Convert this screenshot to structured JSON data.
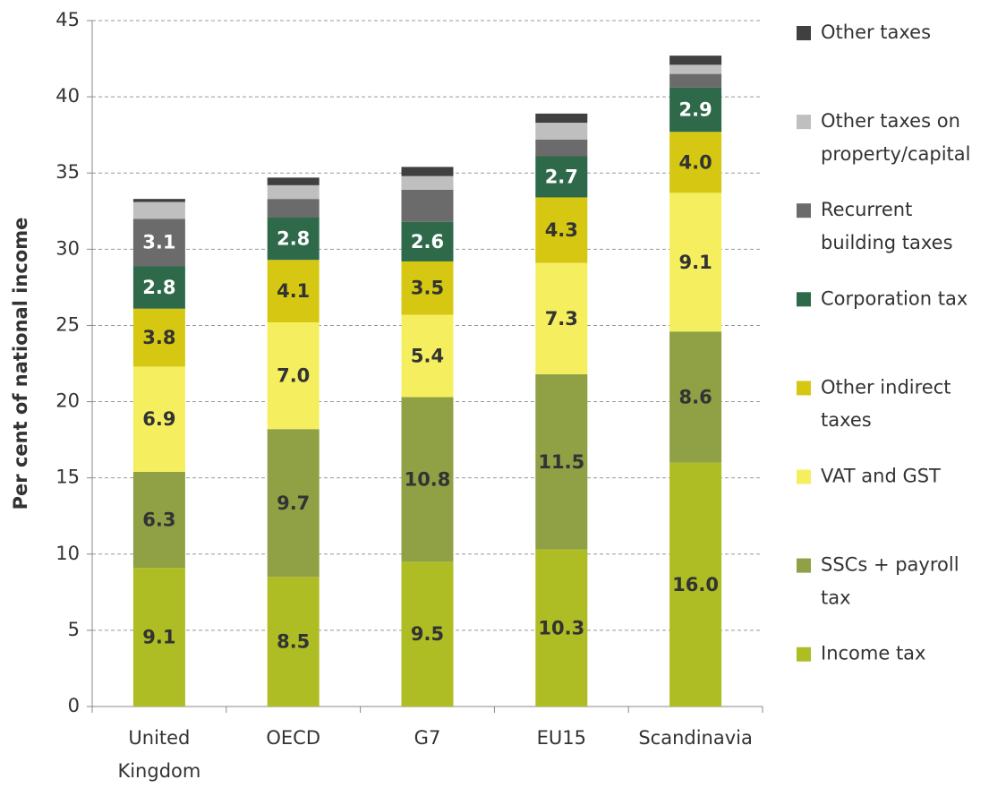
{
  "chart_data": {
    "type": "stacked_bar",
    "y_label": "Per cent of national income",
    "categories": [
      "United Kingdom",
      "OECD",
      "G7",
      "EU15",
      "Scandinavia"
    ],
    "ylim": [
      0,
      45
    ],
    "yticks": [
      0,
      5,
      10,
      15,
      20,
      25,
      30,
      35,
      40,
      45
    ],
    "grid": true,
    "legend": "right",
    "series": [
      {
        "name": "Income tax",
        "color": "#aebd23",
        "values": [
          9.1,
          8.5,
          9.5,
          10.3,
          16.0
        ],
        "value_labels": [
          "9.1",
          "8.5",
          "9.5",
          "10.3",
          "16.0"
        ]
      },
      {
        "name": "SSCs + payroll tax",
        "color": "#8fa045",
        "values": [
          6.3,
          9.7,
          10.8,
          11.5,
          8.6
        ],
        "value_labels": [
          "6.3",
          "9.7",
          "10.8",
          "11.5",
          "8.6"
        ]
      },
      {
        "name": "VAT and GST",
        "color": "#f5ef5f",
        "values": [
          6.9,
          7.0,
          5.4,
          7.3,
          9.1
        ],
        "value_labels": [
          "6.9",
          "7.0",
          "5.4",
          "7.3",
          "9.1"
        ]
      },
      {
        "name": "Other indirect taxes",
        "color": "#d6c812",
        "values": [
          3.8,
          4.1,
          3.5,
          4.3,
          4.0
        ],
        "value_labels": [
          "3.8",
          "4.1",
          "3.5",
          "4.3",
          "4.0"
        ]
      },
      {
        "name": "Corporation tax",
        "color": "#2e6a4a",
        "values": [
          2.8,
          2.8,
          2.6,
          2.7,
          2.9
        ],
        "value_labels": [
          "2.8",
          "2.8",
          "2.6",
          "2.7",
          "2.9"
        ]
      },
      {
        "name": "Recurrent building taxes",
        "color": "#6b6b6b",
        "values": [
          3.1,
          1.2,
          2.1,
          1.1,
          0.9
        ],
        "value_labels": [
          "3.1",
          null,
          null,
          null,
          null
        ]
      },
      {
        "name": "Other taxes on property/capital",
        "color": "#bfbfbf",
        "values": [
          1.1,
          0.9,
          0.9,
          1.1,
          0.6
        ]
      },
      {
        "name": "Other taxes",
        "color": "#404040",
        "values": [
          0.2,
          0.5,
          0.6,
          0.6,
          0.6
        ]
      }
    ]
  }
}
